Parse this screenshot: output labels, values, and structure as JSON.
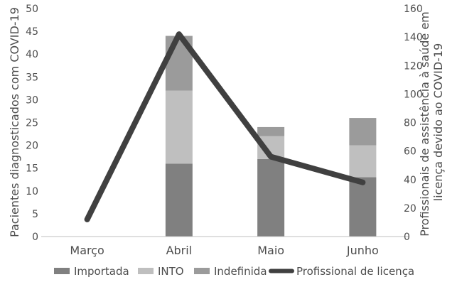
{
  "chart_data": {
    "type": "bar",
    "stacked": true,
    "categories": [
      "Março",
      "Abril",
      "Maio",
      "Junho"
    ],
    "series": [
      {
        "name": "Importada",
        "values": [
          0,
          16,
          17,
          13
        ],
        "color": "#808080"
      },
      {
        "name": "INTO",
        "values": [
          0,
          16,
          5,
          7
        ],
        "color": "#bfbfbf"
      },
      {
        "name": "Indefinida",
        "values": [
          0,
          12,
          2,
          6
        ],
        "color": "#9b9b9b"
      }
    ],
    "line_series": {
      "name": "Profissional de licença",
      "values": [
        12,
        142,
        56,
        38
      ],
      "color": "#404040",
      "axis": "right"
    },
    "ylabel": "Pacientes diagnosticados com COVID-19",
    "ylabel_right": "Profissionais de assistência à saúde em licença devido ao COVID-19",
    "ylim": [
      0,
      50
    ],
    "yticks": [
      "0",
      "5",
      "10",
      "15",
      "20",
      "25",
      "30",
      "35",
      "40",
      "45",
      "50"
    ],
    "ylim_right": [
      0,
      160
    ],
    "yticks_right": [
      "0",
      "20",
      "40",
      "60",
      "80",
      "100",
      "120",
      "140",
      "160"
    ],
    "grid": false,
    "legend_position": "bottom"
  }
}
